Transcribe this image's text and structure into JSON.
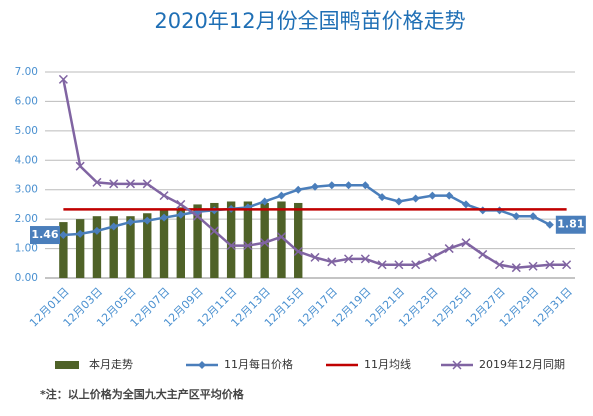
{
  "chart_data": {
    "type": "combo",
    "title": "2020年12月份全国鸭苗价格走势",
    "annotation": "*注：以上价格为全国九大主产区平均价格",
    "categories": [
      "12月01日",
      null,
      "12月03日",
      null,
      "12月05日",
      null,
      "12月07日",
      null,
      "12月09日",
      null,
      "12月11日",
      null,
      "12月13日",
      null,
      "12月15日",
      null,
      "12月17日",
      null,
      "12月19日",
      null,
      "12月21日",
      null,
      "12月23日",
      null,
      "12月25日",
      null,
      "12月27日",
      null,
      "12月29日",
      null,
      "12月31日"
    ],
    "ylim": [
      0,
      7
    ],
    "yticks": [
      {
        "value": 0,
        "label": "0.00"
      },
      {
        "value": 1,
        "label": "1.00"
      },
      {
        "value": 2,
        "label": "2.00"
      },
      {
        "value": 3,
        "label": "3.00"
      },
      {
        "value": 4,
        "label": "4.00"
      },
      {
        "value": 5,
        "label": "5.00"
      },
      {
        "value": 6,
        "label": "6.00"
      },
      {
        "value": 7,
        "label": "7.00"
      }
    ],
    "grid": true,
    "legend": "bottom",
    "series": [
      {
        "name": "本月走势",
        "kind": "bar",
        "color": "#4f6228",
        "values": [
          1.9,
          2.0,
          2.1,
          2.1,
          2.1,
          2.2,
          2.3,
          2.4,
          2.5,
          2.55,
          2.6,
          2.6,
          2.55,
          2.6,
          2.55,
          null,
          null,
          null,
          null,
          null,
          null,
          null,
          null,
          null,
          null,
          null,
          null,
          null,
          null,
          null,
          null
        ]
      },
      {
        "name": "11月每日价格",
        "kind": "line",
        "marker": "diamond",
        "color": "#4a7ebb",
        "values": [
          1.46,
          1.5,
          1.6,
          1.75,
          1.9,
          1.95,
          2.05,
          2.15,
          2.25,
          2.3,
          2.35,
          2.4,
          2.6,
          2.8,
          3.0,
          3.1,
          3.15,
          3.15,
          3.15,
          2.75,
          2.6,
          2.7,
          2.8,
          2.8,
          2.5,
          2.3,
          2.3,
          2.1,
          2.1,
          1.81,
          null
        ],
        "labeled": [
          0,
          29
        ]
      },
      {
        "name": "11月均线",
        "kind": "line",
        "marker": "none",
        "color": "#c00000",
        "values": [
          2.33,
          2.33,
          2.33,
          2.33,
          2.33,
          2.33,
          2.33,
          2.33,
          2.33,
          2.33,
          2.33,
          2.33,
          2.33,
          2.33,
          2.33,
          2.33,
          2.33,
          2.33,
          2.33,
          2.33,
          2.33,
          2.33,
          2.33,
          2.33,
          2.33,
          2.33,
          2.33,
          2.33,
          2.33,
          2.33,
          2.33
        ]
      },
      {
        "name": "2019年12月同期",
        "kind": "line",
        "marker": "x",
        "color": "#8064a2",
        "values": [
          6.75,
          3.8,
          3.25,
          3.2,
          3.2,
          3.2,
          2.8,
          2.5,
          2.1,
          1.6,
          1.1,
          1.1,
          1.2,
          1.4,
          0.9,
          0.7,
          0.55,
          0.65,
          0.65,
          0.45,
          0.45,
          0.45,
          0.7,
          1.0,
          1.2,
          0.8,
          0.45,
          0.35,
          0.4,
          0.45,
          0.45
        ]
      }
    ]
  }
}
